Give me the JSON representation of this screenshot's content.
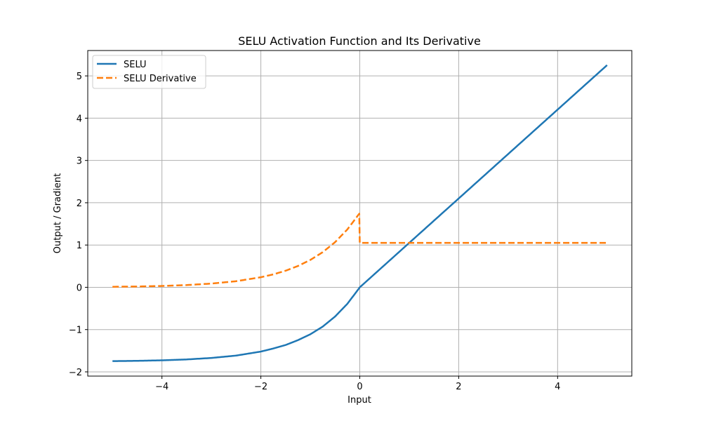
{
  "chart_data": {
    "type": "line",
    "title": "SELU Activation Function and Its Derivative",
    "xlabel": "Input",
    "ylabel": "Output / Gradient",
    "xlim": [
      -5.5,
      5.5
    ],
    "ylim": [
      -2.1,
      5.6
    ],
    "xticks": [
      -4,
      -2,
      0,
      2,
      4
    ],
    "yticks": [
      -2,
      -1,
      0,
      1,
      2,
      3,
      4,
      5
    ],
    "xtick_labels": [
      "−4",
      "−2",
      "0",
      "2",
      "4"
    ],
    "ytick_labels": [
      "−2",
      "−1",
      "0",
      "1",
      "2",
      "3",
      "4",
      "5"
    ],
    "grid": true,
    "legend_position": "upper left",
    "x": [
      -5,
      -4.5,
      -4,
      -3.5,
      -3,
      -2.5,
      -2,
      -1.75,
      -1.5,
      -1.25,
      -1,
      -0.75,
      -0.5,
      -0.25,
      -0.01,
      0,
      1,
      2,
      3,
      4,
      5
    ],
    "series": [
      {
        "name": "SELU",
        "color": "#1f77b4",
        "style": "solid",
        "values": [
          -1.746,
          -1.739,
          -1.727,
          -1.706,
          -1.671,
          -1.615,
          -1.52,
          -1.448,
          -1.365,
          -1.25,
          -1.111,
          -0.93,
          -0.692,
          -0.389,
          -0.017,
          0,
          1.051,
          2.101,
          3.152,
          4.203,
          5.254
        ]
      },
      {
        "name": "SELU Derivative",
        "color": "#ff7f0e",
        "style": "dashed",
        "values": [
          0.012,
          0.019,
          0.032,
          0.053,
          0.088,
          0.144,
          0.238,
          0.305,
          0.392,
          0.504,
          0.647,
          0.83,
          1.067,
          1.37,
          1.741,
          1.051,
          1.051,
          1.051,
          1.051,
          1.051,
          1.051
        ]
      }
    ]
  }
}
